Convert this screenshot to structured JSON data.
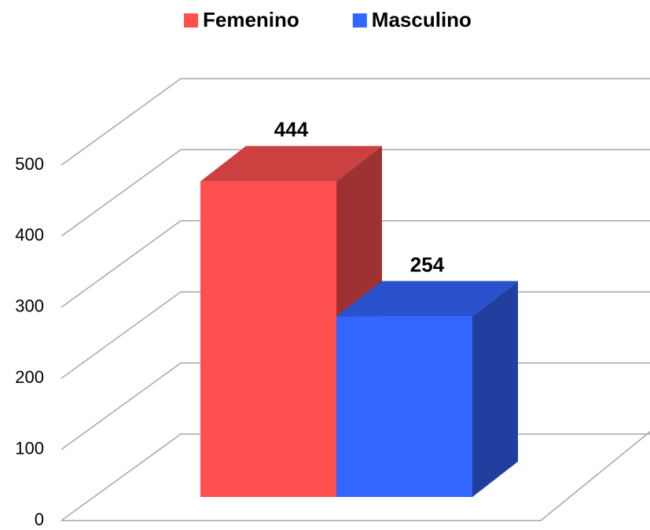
{
  "chart_data": {
    "type": "bar3d",
    "series": [
      {
        "name": "Femenino",
        "color": "#ff5050",
        "values": [
          444
        ]
      },
      {
        "name": "Masculino",
        "color": "#3366ff",
        "values": [
          254
        ]
      }
    ],
    "ylim": [
      0,
      500
    ],
    "yticks": [
      0,
      100,
      200,
      300,
      400,
      500
    ],
    "grid": true,
    "legend": "top"
  }
}
